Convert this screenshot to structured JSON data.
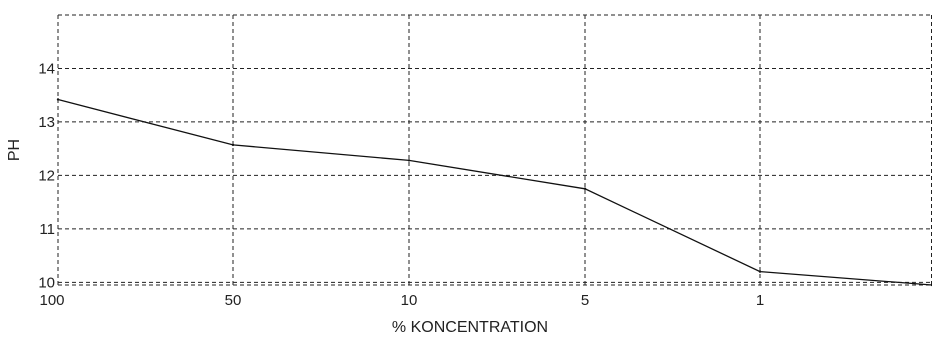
{
  "chart_data": {
    "type": "line",
    "title": "",
    "xlabel": "% KONCENTRATION",
    "ylabel": "PH",
    "x_categories": [
      "100",
      "50",
      "10",
      "5",
      "1",
      ""
    ],
    "y_ticks": [
      "10",
      "11",
      "12",
      "13",
      "14"
    ],
    "ylim": [
      9.95,
      15
    ],
    "grid": true,
    "series": [
      {
        "values": [
          13.42,
          12.57,
          12.28,
          11.75,
          10.2,
          9.95
        ]
      }
    ]
  }
}
